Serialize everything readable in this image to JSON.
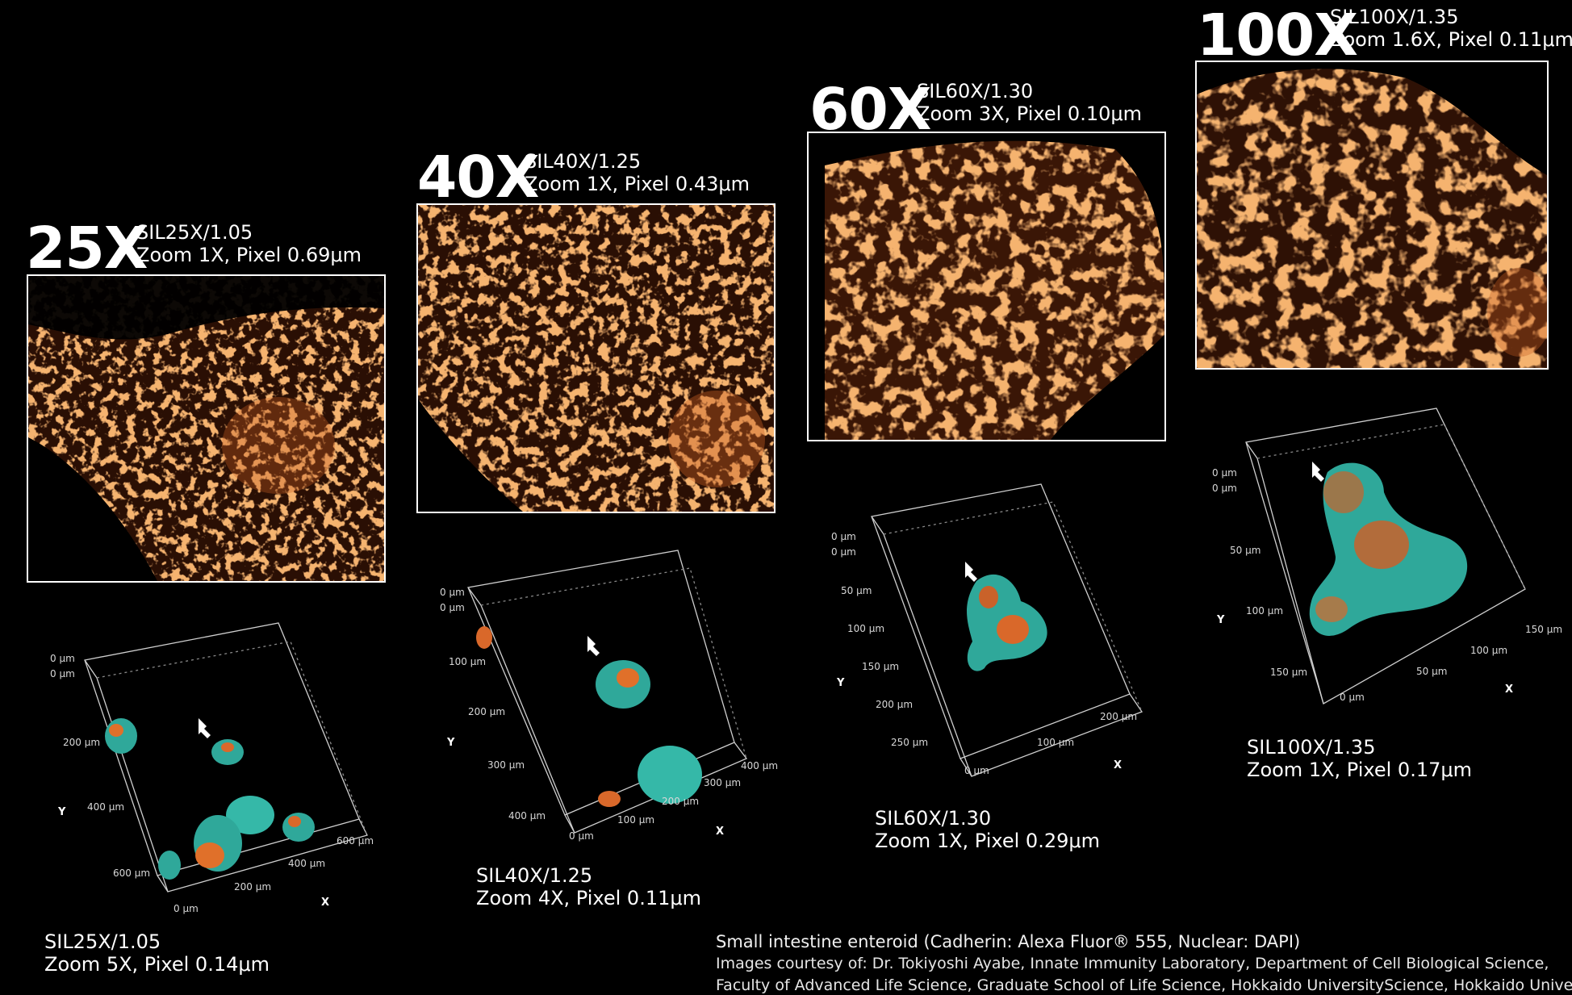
{
  "panels": [
    {
      "magnification": "25X",
      "objective": "SIL25X/1.05",
      "detail": "Zoom 1X, Pixel 0.69μm",
      "volume_objective": "SIL25X/1.05",
      "volume_detail": "Zoom 5X, Pixel 0.14μm",
      "volume_axes": {
        "y_top": [
          "0 μm",
          "0 μm"
        ],
        "y_ticks": [
          "200 μm",
          "400 μm",
          "600 μm"
        ],
        "x_ticks": [
          "0 μm",
          "200 μm",
          "400 μm",
          "600 μm"
        ],
        "y_label": "Y",
        "x_label": "X"
      }
    },
    {
      "magnification": "40X",
      "objective": "SIL40X/1.25",
      "detail": "Zoom 1X, Pixel 0.43μm",
      "volume_objective": "SIL40X/1.25",
      "volume_detail": "Zoom 4X, Pixel 0.11μm",
      "volume_axes": {
        "y_top": [
          "0 μm",
          "0 μm"
        ],
        "y_ticks": [
          "100 μm",
          "200 μm",
          "300 μm",
          "400 μm"
        ],
        "x_ticks": [
          "0 μm",
          "100 μm",
          "200 μm",
          "300 μm",
          "400 μm"
        ],
        "y_label": "Y",
        "x_label": "X"
      }
    },
    {
      "magnification": "60X",
      "objective": "SIL60X/1.30",
      "detail": "Zoom 3X, Pixel 0.10μm",
      "volume_objective": "SIL60X/1.30",
      "volume_detail": "Zoom 1X, Pixel 0.29μm",
      "volume_axes": {
        "y_top": [
          "0 μm",
          "0 μm"
        ],
        "y_ticks": [
          "50 μm",
          "100 μm",
          "150 μm",
          "200 μm",
          "250 μm"
        ],
        "x_ticks": [
          "0 μm",
          "100 μm",
          "200 μm"
        ],
        "y_label": "Y",
        "x_label": "X"
      }
    },
    {
      "magnification": "100X",
      "objective": "SIL100X/1.35",
      "detail": "Zoom 1.6X, Pixel 0.11μm",
      "volume_objective": "SIL100X/1.35",
      "volume_detail": "Zoom 1X, Pixel 0.17μm",
      "volume_axes": {
        "y_top": [
          "0 μm",
          "0 μm"
        ],
        "y_ticks": [
          "50 μm",
          "100 μm",
          "150 μm"
        ],
        "x_ticks": [
          "0 μm",
          "50 μm",
          "100 μm",
          "150 μm"
        ],
        "y_label": "Y",
        "x_label": "X"
      }
    }
  ],
  "credits": {
    "line1": "Small intestine enteroid (Cadherin: Alexa Fluor® 555, Nuclear: DAPI)",
    "line2": "Images courtesy of: Dr. Tokiyoshi Ayabe, Innate Immunity Laboratory, Department of Cell Biological Science,",
    "line3": "Faculty of Advanced Life Science, Graduate School of Life Science, Hokkaido UniversityScience, Hokkaido University"
  },
  "colors": {
    "background": "#000000",
    "cadherin_orange": "#e8742a",
    "nuclear_cyan": "#2fb8a6",
    "frame": "#ffffff"
  }
}
